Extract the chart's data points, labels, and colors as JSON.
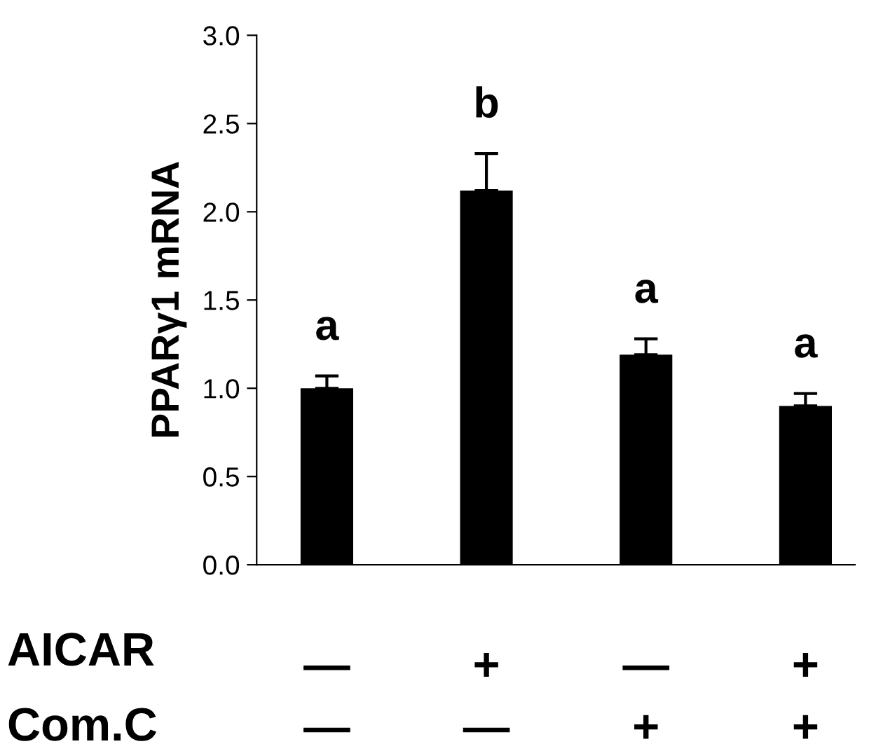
{
  "chart_data": {
    "type": "bar",
    "ylabel": "PPARγ1 mRNA",
    "categories": [
      "—\n—",
      "+\n—",
      "—\n+",
      "+\n+"
    ],
    "values": [
      1.0,
      2.12,
      1.19,
      0.9
    ],
    "errors": [
      [
        1.0,
        1.07
      ],
      [
        2.12,
        2.33
      ],
      [
        1.19,
        1.28
      ],
      [
        0.9,
        0.97
      ]
    ],
    "value_labels": [
      "a",
      "b",
      "a",
      "a"
    ],
    "color": "#000000",
    "ylim": [
      0,
      3
    ],
    "yticks": [
      {
        "value": 0,
        "label": "0.0"
      },
      {
        "value": 0.5,
        "label": "0.5"
      },
      {
        "value": 1,
        "label": "1.0"
      },
      {
        "value": 1.5,
        "label": "1.5"
      },
      {
        "value": 2,
        "label": "2.0"
      },
      {
        "value": 2.5,
        "label": "2.5"
      },
      {
        "value": 3,
        "label": "3.0"
      }
    ],
    "annotations": [
      "AICAR",
      "Com.C"
    ],
    "grid": false,
    "legend": false
  }
}
